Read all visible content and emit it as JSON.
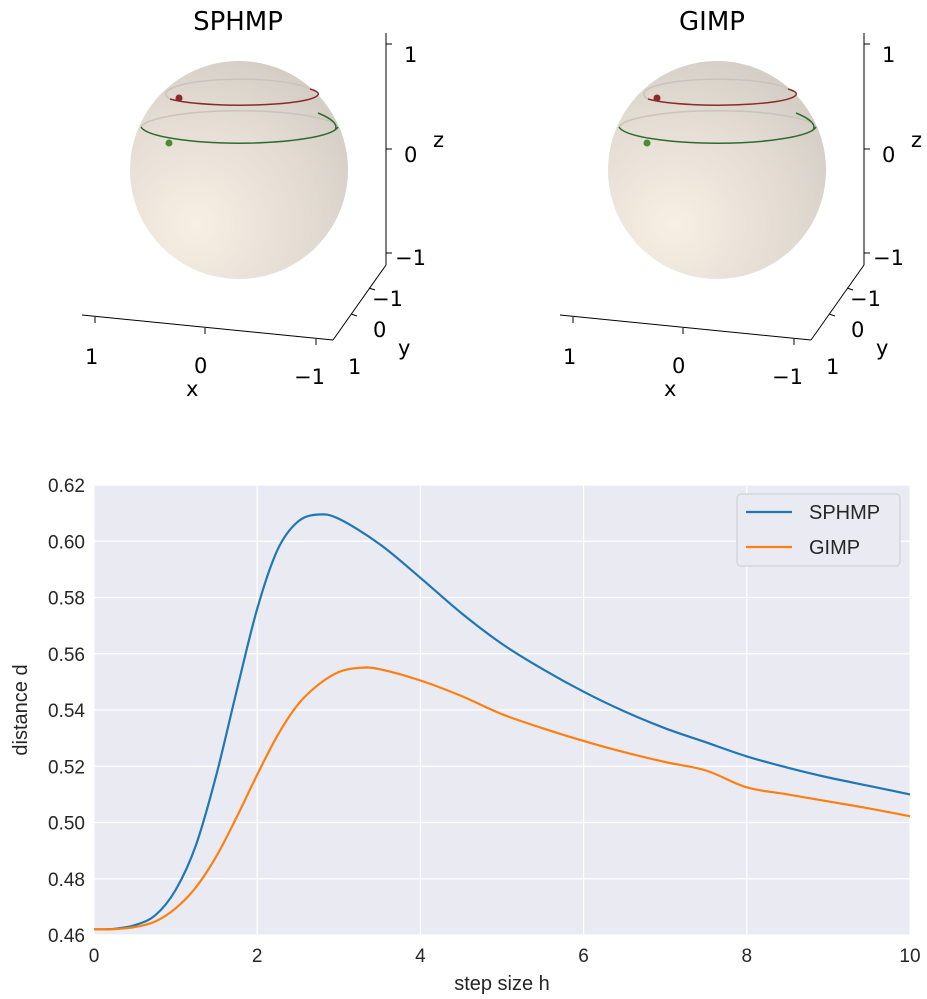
{
  "chart_data": [
    {
      "type": "scatter3d",
      "title": "SPHMP",
      "xlabel": "x",
      "ylabel": "y",
      "zlabel": "z",
      "xticks": [
        "1",
        "0",
        "−1"
      ],
      "yticks": [
        "−1",
        "0",
        "1"
      ],
      "zticks": [
        "1",
        "0",
        "−1"
      ],
      "colors": {
        "sphere": "#e6dfd6",
        "orbit_upper": "#8b2a2a",
        "orbit_lower": "#2e6b2e"
      }
    },
    {
      "type": "scatter3d",
      "title": "GIMP",
      "xlabel": "x",
      "ylabel": "y",
      "zlabel": "z",
      "xticks": [
        "1",
        "0",
        "−1"
      ],
      "yticks": [
        "−1",
        "0",
        "1"
      ],
      "zticks": [
        "1",
        "0",
        "−1"
      ],
      "colors": {
        "sphere": "#e6dfd6",
        "orbit_upper": "#8b2a2a",
        "orbit_lower": "#2e6b2e"
      }
    },
    {
      "type": "line",
      "xlabel": "step size h",
      "ylabel": "distance d",
      "xlim": [
        0,
        10
      ],
      "ylim": [
        0.46,
        0.62
      ],
      "xticks": [
        0,
        2,
        4,
        6,
        8,
        10
      ],
      "yticks": [
        0.46,
        0.48,
        0.5,
        0.52,
        0.54,
        0.56,
        0.58,
        0.6,
        0.62
      ],
      "grid": true,
      "legend": "top-right",
      "series": [
        {
          "name": "SPHMP",
          "color": "#1f77b4",
          "x": [
            0,
            0.25,
            0.5,
            0.75,
            1.0,
            1.25,
            1.5,
            1.75,
            2.0,
            2.25,
            2.5,
            2.75,
            3.0,
            3.5,
            4.0,
            4.5,
            5.0,
            5.5,
            6.0,
            6.5,
            7.0,
            7.5,
            8.0,
            8.5,
            9.0,
            9.5,
            10.0
          ],
          "y": [
            0.462,
            0.4622,
            0.4635,
            0.467,
            0.476,
            0.492,
            0.517,
            0.547,
            0.576,
            0.597,
            0.607,
            0.6095,
            0.608,
            0.599,
            0.587,
            0.5745,
            0.5635,
            0.5545,
            0.5465,
            0.5395,
            0.5335,
            0.5285,
            0.5235,
            0.5195,
            0.516,
            0.513,
            0.51
          ]
        },
        {
          "name": "GIMP",
          "color": "#ff7f0e",
          "x": [
            0,
            0.25,
            0.5,
            0.75,
            1.0,
            1.25,
            1.5,
            1.75,
            2.0,
            2.25,
            2.5,
            2.75,
            3.0,
            3.25,
            3.5,
            4.0,
            4.5,
            5.0,
            5.5,
            6.0,
            6.5,
            7.0,
            7.5,
            8.0,
            8.5,
            9.0,
            9.5,
            10.0
          ],
          "y": [
            0.462,
            0.4621,
            0.4628,
            0.4648,
            0.4695,
            0.477,
            0.488,
            0.502,
            0.517,
            0.531,
            0.542,
            0.549,
            0.5535,
            0.555,
            0.5545,
            0.5505,
            0.545,
            0.5385,
            0.5335,
            0.529,
            0.525,
            0.5215,
            0.5185,
            0.5125,
            0.51,
            0.5075,
            0.505,
            0.5022
          ]
        }
      ]
    }
  ]
}
